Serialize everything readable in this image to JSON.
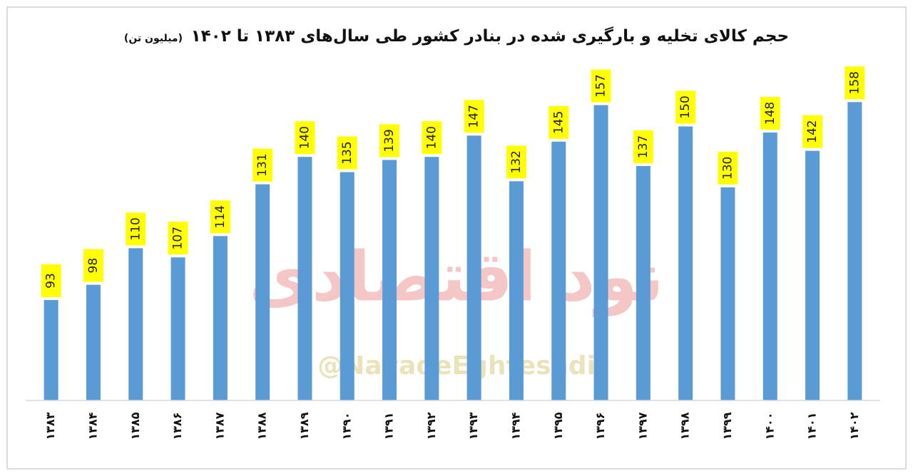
{
  "chart_data": {
    "type": "bar",
    "title": "حجم کالای تخلیه و بارگیری شده در بنادر کشور طی سال‌های ۱۳۸۳ تا ۱۴۰۲",
    "unit": "(میلیون تن)",
    "watermark": "نود اقتصادی",
    "watermark_handle": "@NavadeEghtesadi",
    "categories": [
      "۱۳۸۳",
      "۱۳۸۴",
      "۱۳۸۵",
      "۱۳۸۶",
      "۱۳۸۷",
      "۱۳۸۸",
      "۱۳۸۹",
      "۱۳۹۰",
      "۱۳۹۱",
      "۱۳۹۲",
      "۱۳۹۳",
      "۱۳۹۴",
      "۱۳۹۵",
      "۱۳۹۶",
      "۱۳۹۷",
      "۱۳۹۸",
      "۱۳۹۹",
      "۱۴۰۰",
      "۱۴۰۱",
      "۱۴۰۲"
    ],
    "values": [
      93,
      98,
      110,
      107,
      114,
      131,
      140,
      135,
      139,
      140,
      147,
      132,
      145,
      157,
      137,
      150,
      130,
      148,
      142,
      158
    ],
    "color": "#5b9bd5",
    "label_color": "#ffff00",
    "ylim": [
      60,
      170
    ]
  }
}
